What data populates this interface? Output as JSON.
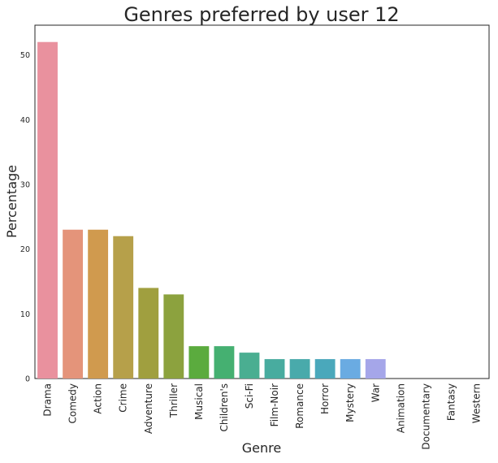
{
  "chart_data": {
    "type": "bar",
    "title": "Genres preferred by user 12",
    "xlabel": "Genre",
    "ylabel": "Percentage",
    "ylim": [
      0,
      54.6
    ],
    "yticks": [
      0,
      10,
      20,
      30,
      40,
      50
    ],
    "grid": false,
    "legend": "none",
    "categories": [
      "Drama",
      "Comedy",
      "Action",
      "Crime",
      "Adventure",
      "Thriller",
      "Musical",
      "Children's",
      "Sci-Fi",
      "Film-Noir",
      "Romance",
      "Horror",
      "Mystery",
      "War",
      "Animation",
      "Documentary",
      "Fantasy",
      "Western"
    ],
    "values": [
      52,
      23,
      23,
      22,
      14,
      13,
      5,
      5,
      4,
      3,
      3,
      3,
      3,
      3,
      0,
      0,
      0,
      0
    ],
    "colors": [
      "#e9919e",
      "#e4947a",
      "#d09a4e",
      "#b6a04a",
      "#a09f3f",
      "#8ca23e",
      "#5bab3e",
      "#45b071",
      "#4aae91",
      "#48ac9f",
      "#49aaab",
      "#4aa8bb",
      "#6aabe2",
      "#a5a6e9",
      "#c89ee4",
      "#e191d4",
      "#e98fbd",
      "#ea8faa"
    ]
  }
}
